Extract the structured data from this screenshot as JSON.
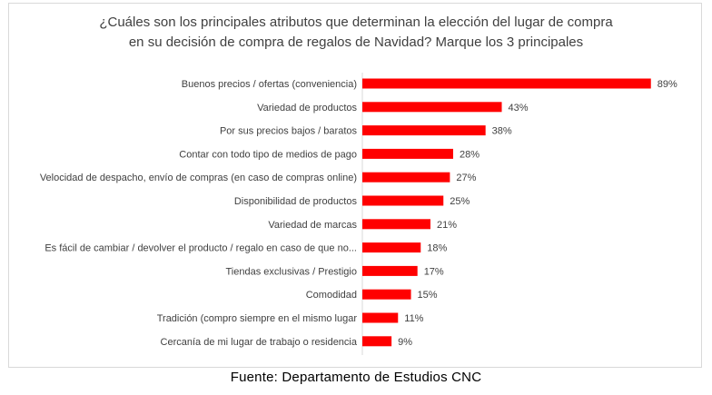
{
  "chart_data": {
    "type": "bar",
    "orientation": "horizontal",
    "title_lines": [
      "¿Cuáles son los principales atributos que determinan la elección del lugar de compra",
      "en su decisión de compra de regalos de Navidad? Marque los 3 principales"
    ],
    "categories": [
      "Buenos precios / ofertas (conveniencia)",
      "Variedad de productos",
      "Por sus precios bajos / baratos",
      "Contar con todo tipo de medios de pago",
      "Velocidad de despacho, envío de compras (en caso de compras online)",
      "Disponibilidad de productos",
      "Variedad de marcas",
      "Es fácil de cambiar / devolver el producto / regalo en caso de que no...",
      "Tiendas exclusivas / Prestigio",
      "Comodidad",
      "Tradición (compro siempre en el mismo lugar",
      "Cercanía de mi lugar de trabajo o residencia"
    ],
    "values": [
      89,
      43,
      38,
      28,
      27,
      25,
      21,
      18,
      17,
      15,
      11,
      9
    ],
    "value_labels": [
      "89%",
      "43%",
      "38%",
      "28%",
      "27%",
      "25%",
      "21%",
      "18%",
      "17%",
      "15%",
      "11%",
      "9%"
    ],
    "xlim": [
      0,
      100
    ],
    "bar_color": "#ff0000",
    "grid": false,
    "legend": "none"
  },
  "source_note": "Fuente: Departamento de Estudios CNC"
}
